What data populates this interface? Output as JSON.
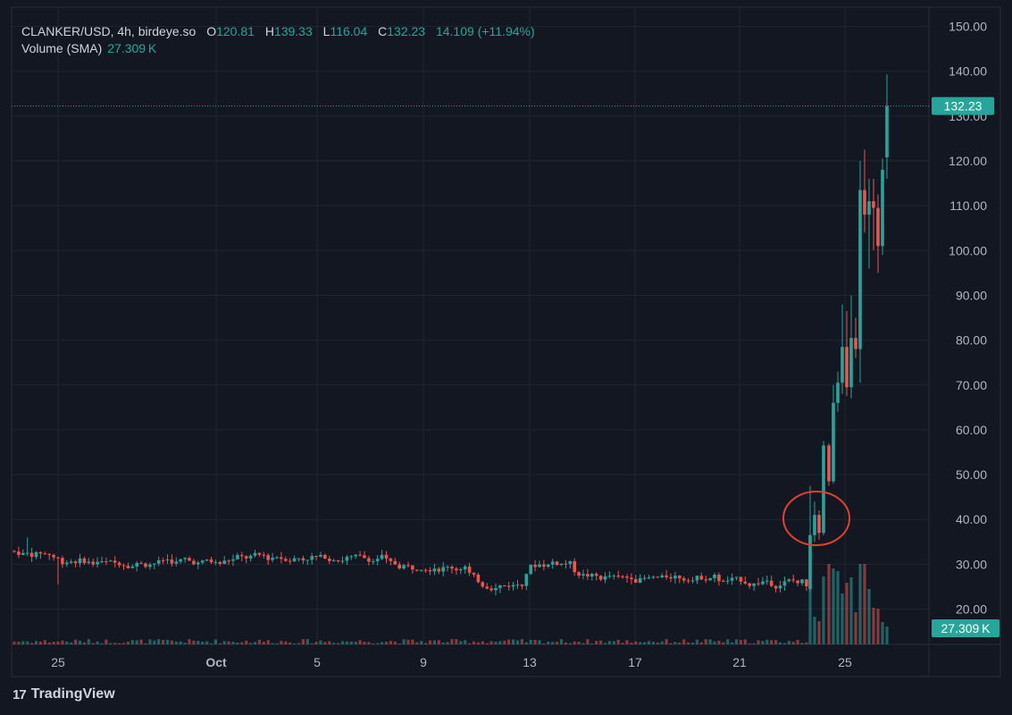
{
  "legend": {
    "symbol": "CLANKER/USD, 4h, birdeye.so",
    "open_label": "O",
    "open_value": "120.81",
    "high_label": "H",
    "high_value": "139.33",
    "low_label": "L",
    "low_value": "116.04",
    "close_label": "C",
    "close_value": "132.23",
    "change": "14.109 (+11.94%)",
    "volume_label": "Volume (SMA)",
    "volume_value": "27.309 K"
  },
  "price_badge": "132.23",
  "volume_badge": "27.309 K",
  "brand": {
    "logo": "17",
    "name": "TradingView"
  },
  "colors": {
    "background": "#131722",
    "up": "#26a69a",
    "down": "#ef5350",
    "grid": "#1f2430",
    "axis_text": "#b2b5be",
    "annotation": "#e0402f"
  },
  "chart_data": {
    "type": "candlestick",
    "yticks": [
      "150.00",
      "140.00",
      "130.00",
      "120.00",
      "110.00",
      "100.00",
      "90.00",
      "80.00",
      "70.00",
      "60.00",
      "50.00",
      "40.00",
      "30.00",
      "20.00"
    ],
    "xticks": [
      "25",
      "Oct",
      "5",
      "9",
      "13",
      "17",
      "21",
      "25"
    ],
    "last_price": 132.23,
    "annotation": "red circle around early breakout candles near 40"
  }
}
